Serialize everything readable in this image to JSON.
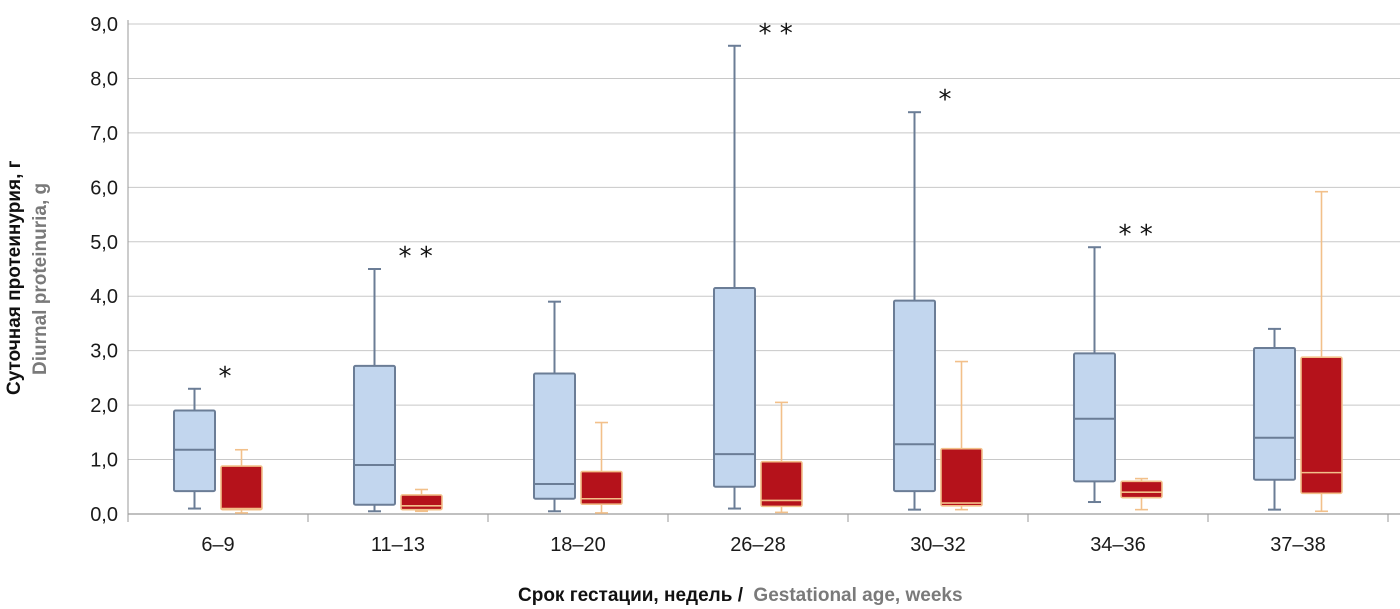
{
  "chart_data": {
    "type": "box",
    "ylim": [
      0,
      9
    ],
    "yticks": [
      "0,0",
      "1,0",
      "2,0",
      "3,0",
      "4,0",
      "5,0",
      "6,0",
      "7,0",
      "8,0",
      "9,0"
    ],
    "grid": true,
    "ylabel_ru": "Суточная протеинурия, г",
    "ylabel_en": "Diurnal proteinuria, g",
    "xlabel_ru": "Срок гестации, недель /",
    "xlabel_en": "Gestational age, weeks",
    "categories": [
      "6–9",
      "11–13",
      "18–20",
      "26–28",
      "30–32",
      "34–36",
      "37–38"
    ],
    "significance": [
      "*",
      "* *",
      "",
      "* *",
      "*",
      "* *",
      ""
    ],
    "series": [
      {
        "color": "#c2d6ee",
        "stroke": "#6b7d96",
        "boxes": [
          {
            "min": 0.1,
            "q1": 0.42,
            "median": 1.18,
            "q3": 1.9,
            "max": 2.3
          },
          {
            "min": 0.05,
            "q1": 0.17,
            "median": 0.9,
            "q3": 2.72,
            "max": 4.5
          },
          {
            "min": 0.05,
            "q1": 0.28,
            "median": 0.55,
            "q3": 2.58,
            "max": 3.9
          },
          {
            "min": 0.1,
            "q1": 0.5,
            "median": 1.1,
            "q3": 4.15,
            "max": 8.6
          },
          {
            "min": 0.08,
            "q1": 0.42,
            "median": 1.28,
            "q3": 3.92,
            "max": 7.38
          },
          {
            "min": 0.22,
            "q1": 0.6,
            "median": 1.75,
            "q3": 2.95,
            "max": 4.9
          },
          {
            "min": 0.08,
            "q1": 0.63,
            "median": 1.4,
            "q3": 3.05,
            "max": 3.4
          }
        ]
      },
      {
        "color": "#b5121b",
        "stroke": "#f2c08a",
        "boxes": [
          {
            "min": 0.02,
            "q1": 0.08,
            "median": 0.1,
            "q3": 0.88,
            "max": 1.18
          },
          {
            "min": 0.05,
            "q1": 0.08,
            "median": 0.15,
            "q3": 0.35,
            "max": 0.45
          },
          {
            "min": 0.02,
            "q1": 0.18,
            "median": 0.28,
            "q3": 0.78,
            "max": 1.68
          },
          {
            "min": 0.03,
            "q1": 0.14,
            "median": 0.25,
            "q3": 0.96,
            "max": 2.05
          },
          {
            "min": 0.08,
            "q1": 0.15,
            "median": 0.2,
            "q3": 1.2,
            "max": 2.8
          },
          {
            "min": 0.08,
            "q1": 0.3,
            "median": 0.4,
            "q3": 0.6,
            "max": 0.65
          },
          {
            "min": 0.05,
            "q1": 0.38,
            "median": 0.76,
            "q3": 2.88,
            "max": 5.92
          }
        ]
      }
    ]
  }
}
